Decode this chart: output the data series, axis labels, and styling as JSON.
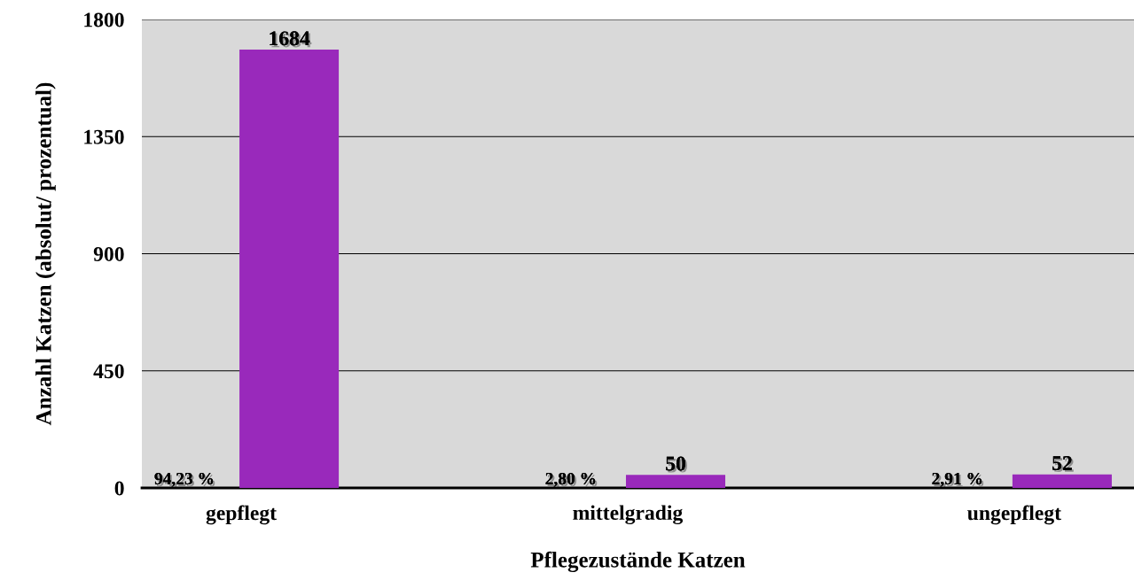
{
  "chart_data": {
    "type": "bar",
    "xlabel": "Pflegezustände Katzen",
    "ylabel": "Anzahl Katzen (absolut/ prozentual)",
    "categories": [
      "gepflegt",
      "mittelgradig",
      "ungepflegt"
    ],
    "values": [
      1684,
      50,
      52
    ],
    "color": "#9929bb",
    "data_labels": true,
    "ylim": [
      0,
      1800
    ],
    "yticks": [
      0,
      450,
      900,
      1350,
      1800
    ],
    "grid": "y",
    "annotations": [
      {
        "text": "94,23 %",
        "x": "gepflegt",
        "y": 0
      },
      {
        "text": "2,80 %",
        "x": "mittelgradig",
        "y": 0
      },
      {
        "text": "2,91 %",
        "x": "ungepflegt",
        "y": 0
      }
    ]
  }
}
